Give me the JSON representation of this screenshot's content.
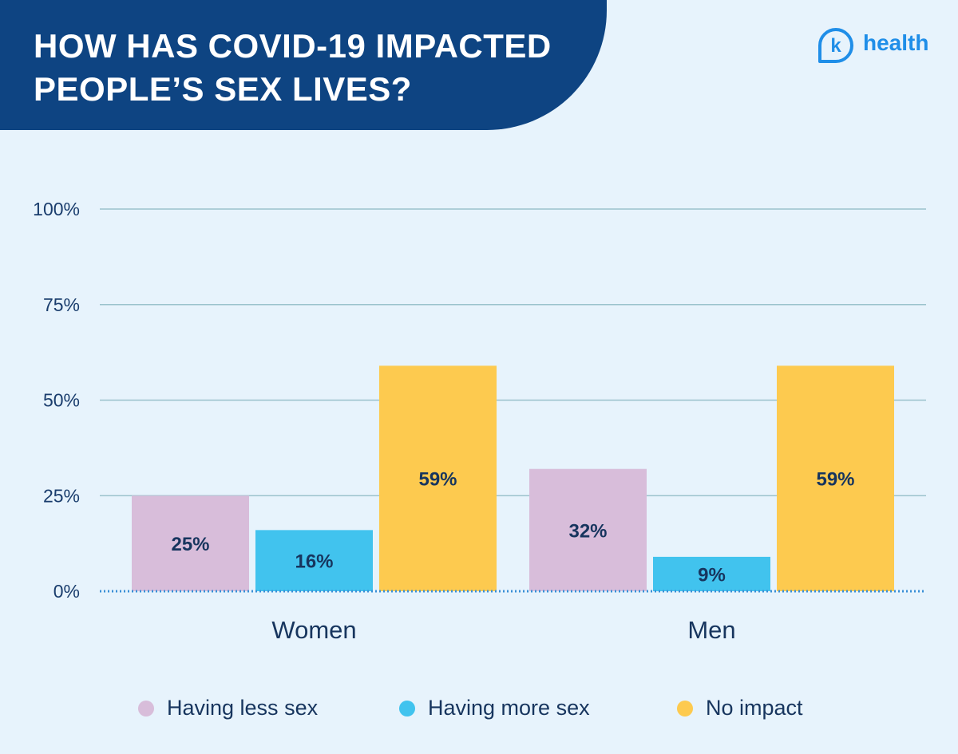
{
  "header": {
    "title_line_1": "HOW HAS COVID-19 IMPACTED",
    "title_line_2": "PEOPLE’S SEX LIVES?"
  },
  "brand": {
    "icon_letter": "k",
    "name": "health"
  },
  "colors": {
    "banner": "#0e4482",
    "background": "#e7f3fc",
    "brand": "#1f8ee8",
    "less": "#d8bdda",
    "more": "#41c3ee",
    "none": "#fdca4f",
    "grid": "#9bc2cc",
    "baseline": "#3a8fd6"
  },
  "chart_data": {
    "type": "bar",
    "categories": [
      "Women",
      "Men"
    ],
    "series": [
      {
        "name": "Having less sex",
        "values": [
          25,
          32
        ],
        "labels": [
          "25%",
          "32%"
        ],
        "color": "#d8bdda"
      },
      {
        "name": "Having more sex",
        "values": [
          16,
          9
        ],
        "labels": [
          "16%",
          "9%"
        ],
        "color": "#41c3ee"
      },
      {
        "name": "No impact",
        "values": [
          59,
          59
        ],
        "labels": [
          "59%",
          "59%"
        ],
        "color": "#fdca4f"
      }
    ],
    "yticks": [
      {
        "value": 0,
        "label": "0%"
      },
      {
        "value": 25,
        "label": "25%"
      },
      {
        "value": 50,
        "label": "50%"
      },
      {
        "value": 75,
        "label": "75%"
      },
      {
        "value": 100,
        "label": "100%"
      }
    ],
    "ylim": [
      0,
      100
    ],
    "grid": true,
    "legend_position": "bottom"
  }
}
